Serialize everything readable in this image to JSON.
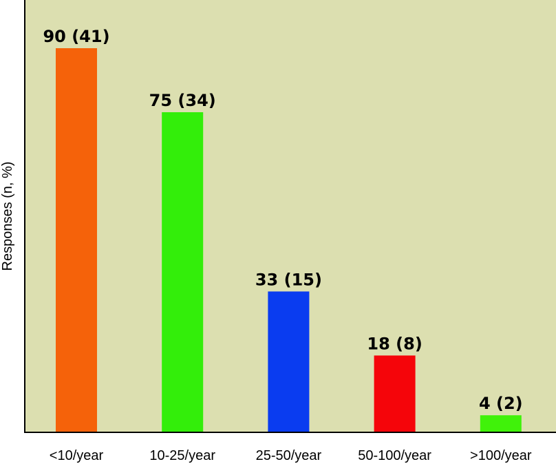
{
  "chart_data": {
    "type": "bar",
    "title": "",
    "xlabel": "",
    "ylabel": "Responses (n, %)",
    "categories": [
      "<10/year",
      "10-25/year",
      "25-50/year",
      "50-100/year",
      ">100/year"
    ],
    "values": [
      90,
      75,
      33,
      18,
      4
    ],
    "percentages": [
      41,
      34,
      15,
      8,
      2
    ],
    "data_labels": [
      "90 (41)",
      "75 (34)",
      "33 (15)",
      "18 (8)",
      "4 (2)"
    ],
    "ylim": [
      0,
      100
    ],
    "grid": false,
    "legend": "none",
    "colors": {
      "plot_background": "#dcdfb0",
      "axis": "#000000",
      "bars": [
        "#f5620a",
        "#33ee0a",
        "#0a3cf0",
        "#f5050a",
        "#40f20a"
      ]
    }
  }
}
